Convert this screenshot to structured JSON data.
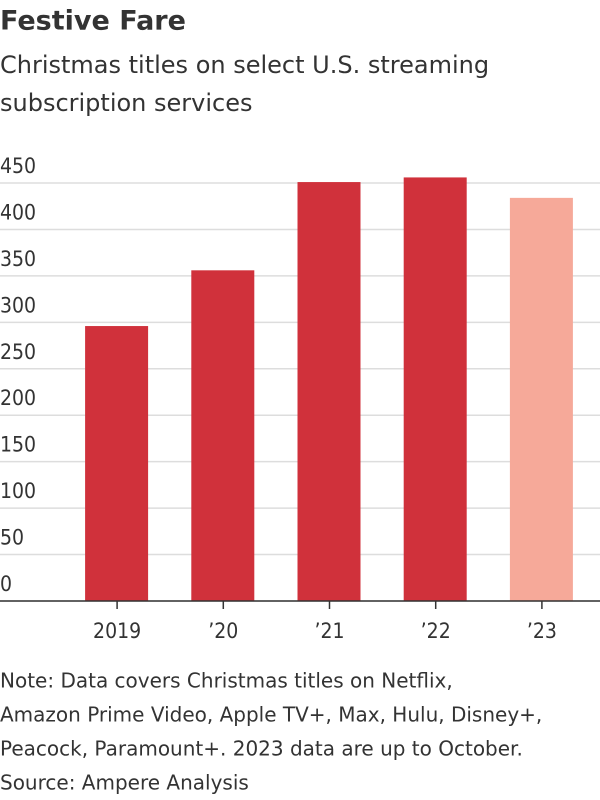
{
  "chart_data": {
    "type": "bar",
    "title": "Festive Fare",
    "subtitle": [
      "Christmas titles on select U.S. streaming",
      "subscription services"
    ],
    "categories": [
      "2019",
      "’20",
      "’21",
      "’22",
      "’23"
    ],
    "values": [
      296,
      356,
      451,
      456,
      434
    ],
    "colors": [
      "#d0313b",
      "#d0313b",
      "#d0313b",
      "#d0313b",
      "#f6a999"
    ],
    "ylim": [
      0,
      450
    ],
    "yticks": [
      0,
      50,
      100,
      150,
      200,
      250,
      300,
      350,
      400,
      450
    ],
    "grid": true,
    "note": [
      "Note: Data covers Christmas titles on Netflix,",
      "Amazon Prime Video, Apple TV+, Max, Hulu, Disney+,",
      "Peacock, Paramount+. 2023 data are up to October."
    ],
    "source": "Source: Ampere Analysis"
  }
}
